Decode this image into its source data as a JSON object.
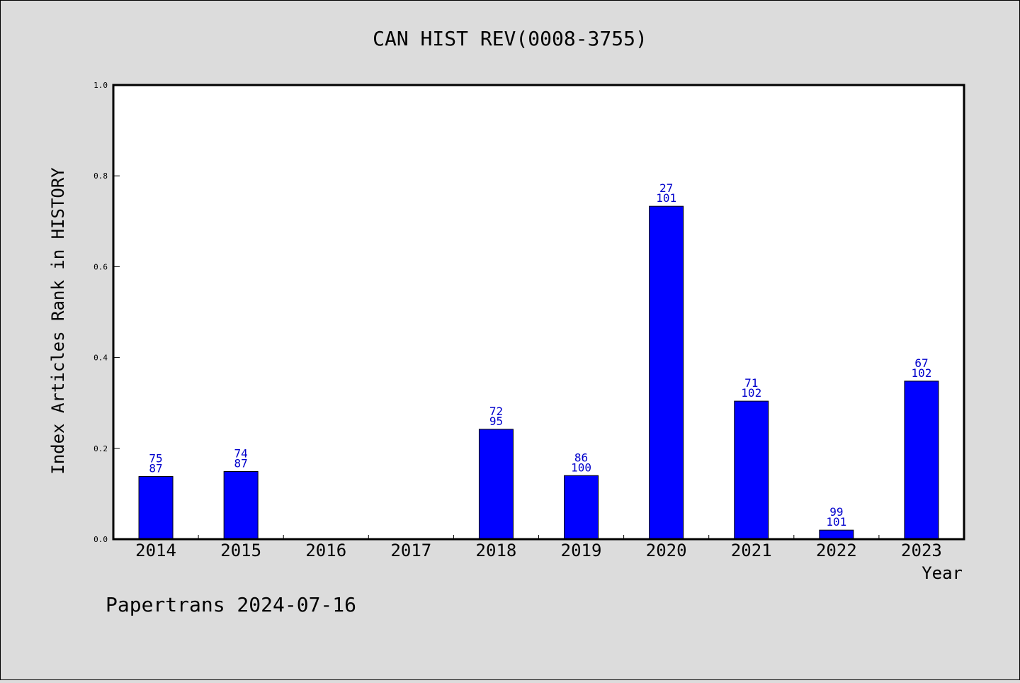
{
  "chart_data": {
    "type": "bar",
    "title": "CAN HIST REV(0008-3755)",
    "ylabel": "Index Articles Rank in HISTORY",
    "xlabel": "Year",
    "footer": "Papertrans 2024-07-16",
    "ylim": [
      0,
      1.0
    ],
    "yticks": [
      "0.0",
      "0.2",
      "0.4",
      "0.6",
      "0.8",
      "1.0"
    ],
    "ytick_values": [
      0,
      0.2,
      0.4,
      0.6,
      0.8,
      1.0
    ],
    "categories": [
      "2014",
      "2015",
      "2016",
      "2017",
      "2018",
      "2019",
      "2020",
      "2021",
      "2022",
      "2023"
    ],
    "values": [
      0.138,
      0.149,
      null,
      null,
      0.242,
      0.14,
      0.733,
      0.304,
      0.02,
      0.348
    ],
    "labels_top": [
      "75",
      "74",
      "",
      "",
      "72",
      "86",
      "27",
      "71",
      "99",
      "67"
    ],
    "labels_bottom": [
      "87",
      "87",
      "",
      "",
      "95",
      "100",
      "101",
      "102",
      "101",
      "102"
    ],
    "bar_color": "#0000ff",
    "label_color": "#0000cc",
    "grid": false
  }
}
